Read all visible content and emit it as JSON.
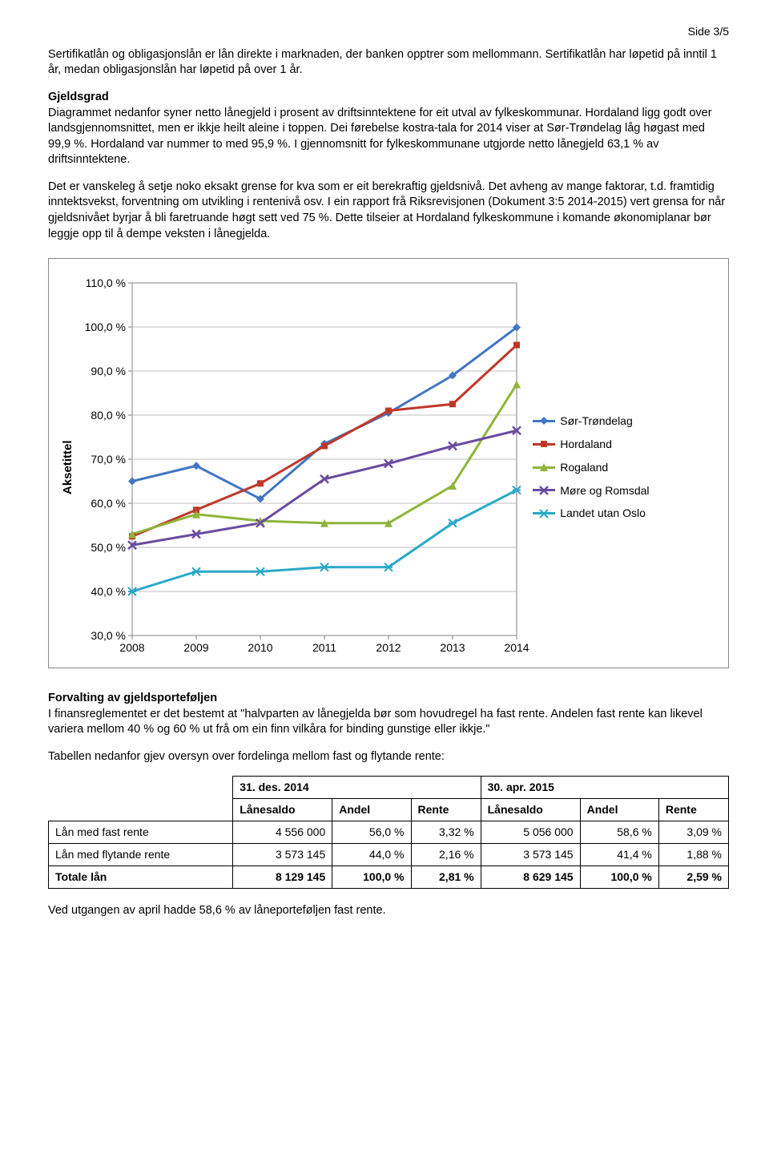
{
  "page_number": "Side 3/5",
  "para1": "Sertifikatlån og obligasjonslån er lån direkte i marknaden, der banken opptrer som mellommann. Sertifikatlån har løpetid på inntil 1 år, medan obligasjonslån har løpetid på over 1 år.",
  "gjeldsgrad_head": "Gjeldsgrad",
  "para2": "Diagrammet nedanfor syner netto lånegjeld i prosent av driftsinntektene for eit utval av fylkeskommunar. Hordaland ligg godt over landsgjennomsnittet, men er ikkje heilt aleine i toppen. Dei førebelse kostra-tala for 2014 viser at Sør-Trøndelag låg høgast med 99,9 %. Hordaland var nummer to med 95,9 %. I gjennomsnitt for fylkeskommunane utgjorde netto lånegjeld  63,1 % av driftsinntektene.",
  "para3": "Det er vanskeleg å setje noko eksakt grense for kva som er eit berekraftig gjeldsnivå. Det avheng av mange faktorar, t.d. framtidig inntektsvekst, forventning om utvikling i rentenivå osv. I ein rapport frå Riksrevisjonen (Dokument 3:5 2014-2015) vert grensa for når gjeldsnivået byrjar å bli faretruande høgt sett ved 75 %. Dette tilseier at Hordaland fylkeskommune i komande økonomiplanar bør leggje opp til å dempe veksten i lånegjelda.",
  "chart": {
    "y_axis_label": "Aksetittel",
    "x_categories": [
      "2008",
      "2009",
      "2010",
      "2011",
      "2012",
      "2013",
      "2014"
    ],
    "y_ticks": [
      "30,0 %",
      "40,0 %",
      "50,0 %",
      "60,0 %",
      "70,0 %",
      "80,0 %",
      "90,0 %",
      "100,0 %",
      "110,0 %"
    ],
    "y_min": 30,
    "y_max": 110,
    "series": [
      {
        "name": "Sør-Trøndelag",
        "color": "#4176c3",
        "marker": "diamond",
        "values": [
          65,
          68.5,
          61,
          73.5,
          80.5,
          89,
          99.9
        ]
      },
      {
        "name": "Hordaland",
        "color": "#c0372a",
        "marker": "square",
        "values": [
          52.5,
          58.5,
          64.5,
          73,
          81,
          82.5,
          95.9
        ]
      },
      {
        "name": "Rogaland",
        "color": "#8fb43a",
        "marker": "triangle",
        "values": [
          53,
          57.5,
          56,
          55.5,
          55.5,
          64,
          87
        ]
      },
      {
        "name": "Møre og Romsdal",
        "color": "#6a4ca0",
        "marker": "cross",
        "values": [
          50.5,
          53,
          55.5,
          65.5,
          69,
          73,
          76.5
        ]
      },
      {
        "name": "Landet utan Oslo",
        "color": "#2aa9c9",
        "marker": "asterisk",
        "values": [
          40,
          44.5,
          44.5,
          45.5,
          45.5,
          55.5,
          63
        ]
      }
    ],
    "plot_bg": "#ffffff",
    "grid_color": "#bfbfbf",
    "axis_color": "#808080",
    "tick_font_size": 14
  },
  "section2_head": "Forvalting av gjeldsporteføljen",
  "para4": "I finansreglementet er det bestemt at \"halvparten av lånegjelda bør som hovudregel ha fast rente. Andelen fast rente kan likevel variera mellom 40 % og 60 % ut frå om ein finn vilkåra for binding gunstige eller ikkje.\"",
  "para5": "Tabellen nedanfor gjev oversyn over fordelinga mellom fast og flytande rente:",
  "table": {
    "group_headers": [
      "",
      "31. des. 2014",
      "30. apr. 2015"
    ],
    "sub_headers": [
      "",
      "Lånesaldo",
      "Andel",
      "Rente",
      "Lånesaldo",
      "Andel",
      "Rente"
    ],
    "rows": [
      [
        "Lån med fast rente",
        "4 556 000",
        "56,0 %",
        "3,32 %",
        "5 056 000",
        "58,6 %",
        "3,09 %"
      ],
      [
        "Lån med flytande rente",
        "3 573 145",
        "44,0 %",
        "2,16 %",
        "3 573 145",
        "41,4 %",
        "1,88 %"
      ],
      [
        "Totale lån",
        "8 129 145",
        "100,0 %",
        "2,81 %",
        "8 629 145",
        "100,0 %",
        "2,59 %"
      ]
    ]
  },
  "para6": "Ved utgangen av april hadde 58,6 % av låneporteføljen fast rente."
}
